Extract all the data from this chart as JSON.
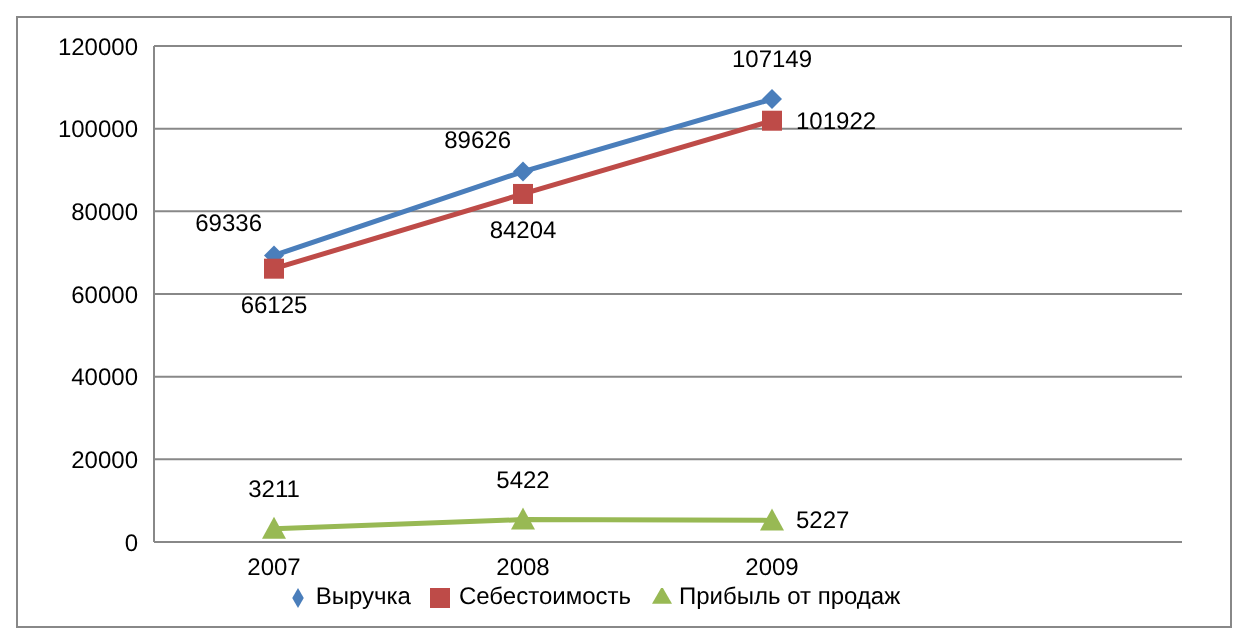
{
  "chart_data": {
    "type": "line",
    "categories": [
      "2007",
      "2008",
      "2009"
    ],
    "series": [
      {
        "name": "Выручка",
        "color": "#4a7ebb",
        "values": [
          69336,
          89626,
          107149
        ],
        "marker": "diamond"
      },
      {
        "name": "Себестоимость",
        "color": "#be4b48",
        "values": [
          66125,
          84204,
          101922
        ],
        "marker": "square"
      },
      {
        "name": "Прибыль от продаж",
        "color": "#98b954",
        "values": [
          3211,
          5422,
          5227
        ],
        "marker": "triangle"
      }
    ],
    "ylim": [
      0,
      120000
    ],
    "yticks": [
      0,
      20000,
      40000,
      60000,
      80000,
      100000,
      120000
    ],
    "grid": "y",
    "legend": "bottom",
    "data_labels": true
  }
}
